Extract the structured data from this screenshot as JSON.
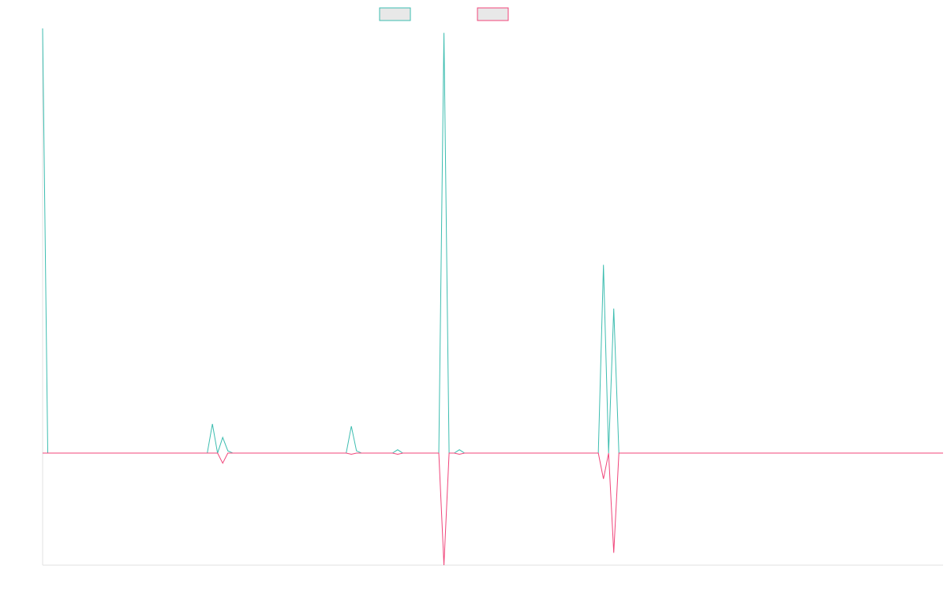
{
  "chart_data": {
    "type": "line",
    "x": [
      0,
      1,
      32,
      33,
      34,
      35,
      36,
      37,
      59,
      60,
      61,
      62,
      68,
      69,
      70,
      77,
      78,
      79,
      80,
      81,
      82,
      108,
      109,
      110,
      111,
      112,
      175
    ],
    "xlim": [
      0,
      175
    ],
    "ylim": [
      -1,
      3.79
    ],
    "series": [
      {
        "color": "#3dbdb0",
        "values": [
          3.79,
          0,
          0,
          0.26,
          0,
          0.14,
          0.02,
          0,
          0,
          0.24,
          0.02,
          0,
          0,
          0.03,
          0,
          0,
          3.75,
          0,
          0,
          0.03,
          0,
          0,
          1.68,
          0,
          1.29,
          0,
          0
        ]
      },
      {
        "color": "#f0457a",
        "values": [
          0,
          0,
          0,
          0,
          0,
          -0.09,
          0,
          0,
          0,
          -0.01,
          0,
          0,
          0,
          -0.01,
          0,
          0,
          -1.0,
          0,
          0,
          -0.01,
          0,
          0,
          -0.23,
          0,
          -0.89,
          0,
          0
        ]
      }
    ]
  }
}
